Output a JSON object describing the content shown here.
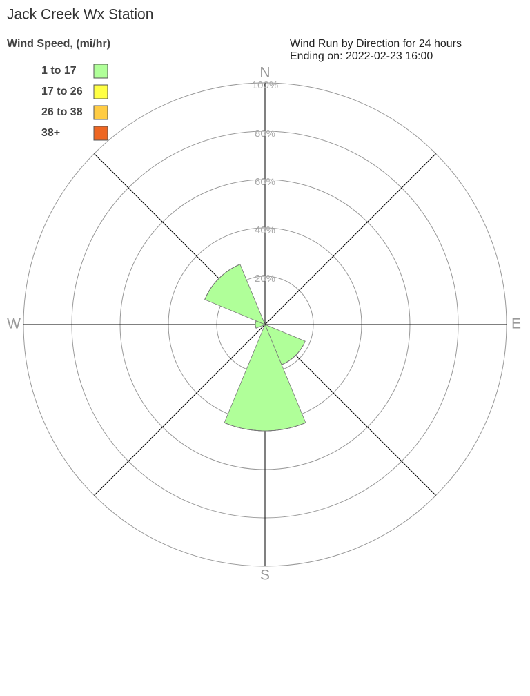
{
  "chart_data": {
    "type": "windrose",
    "title": "Jack Creek Wx Station",
    "subtitle": [
      "Wind Run by Direction for 24 hours",
      "Ending on: 2022-02-23 16:00"
    ],
    "legend_title": "Wind Speed, (mi/hr)",
    "categories": [
      "N",
      null,
      "E",
      null,
      "S",
      null,
      "W",
      null
    ],
    "series": [
      {
        "name": "1 to 17",
        "color": "#b0ff99",
        "values": [
          0,
          0,
          0,
          18,
          44,
          0,
          4,
          27
        ]
      },
      {
        "name": "17 to 26",
        "color": "#ffff44",
        "values": [
          0,
          0,
          0,
          0,
          0,
          0,
          0,
          0
        ]
      },
      {
        "name": "26 to 38",
        "color": "#ffcc44",
        "values": [
          0,
          0,
          0,
          0,
          0,
          0,
          0,
          0
        ]
      },
      {
        "name": "38+",
        "color": "#ee6622",
        "values": [
          0,
          0,
          0,
          0,
          0,
          0,
          0,
          0
        ]
      }
    ],
    "rlim": [
      0,
      100
    ],
    "rticks": [
      {
        "value": 20,
        "label": "20%"
      },
      {
        "value": 40,
        "label": "40%"
      },
      {
        "value": 60,
        "label": "60%"
      },
      {
        "value": 80,
        "label": "80%"
      },
      {
        "value": 100,
        "label": "100%"
      }
    ]
  }
}
